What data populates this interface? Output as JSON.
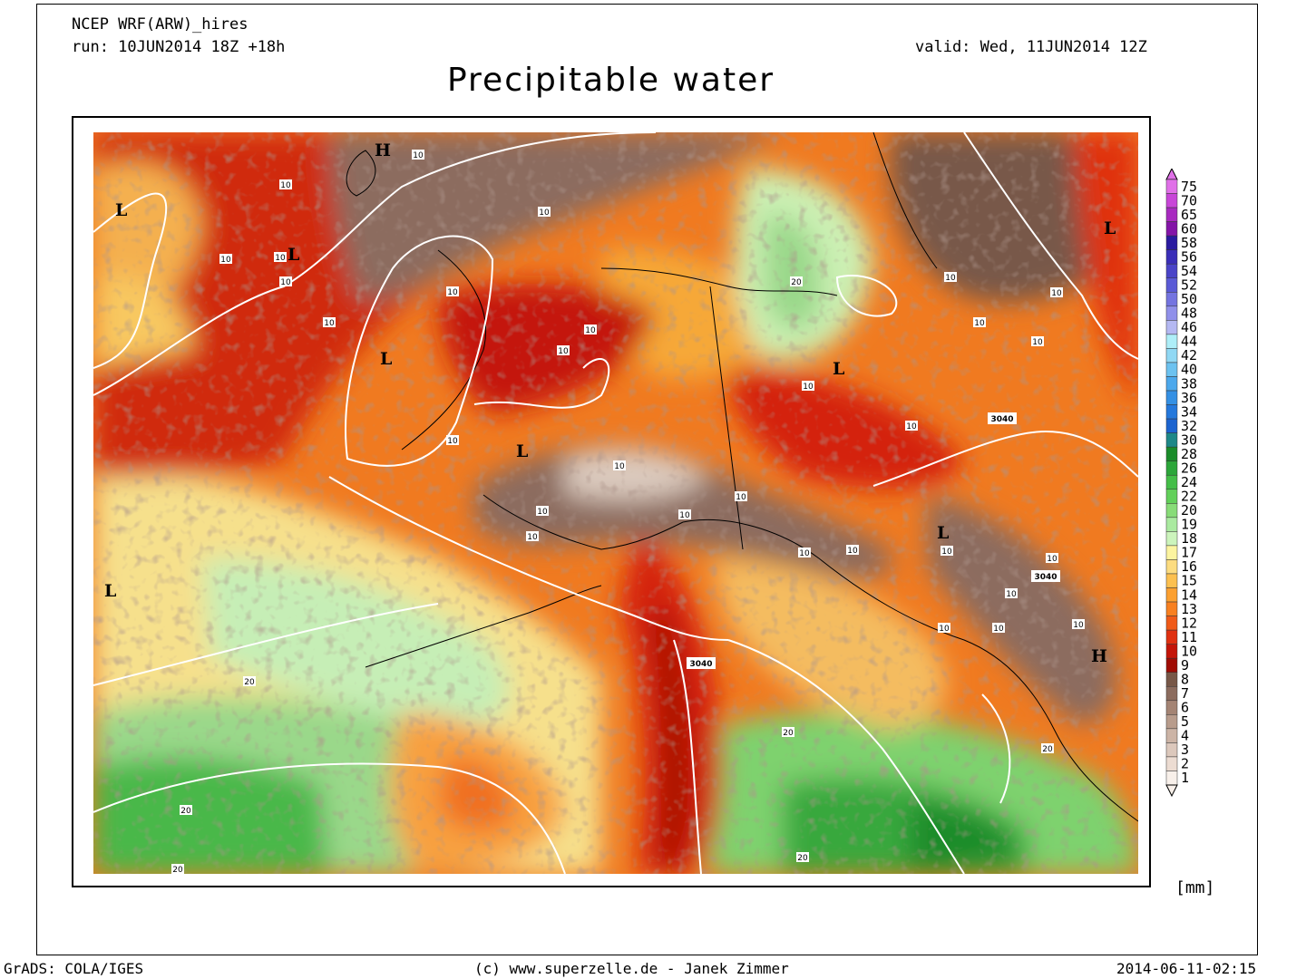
{
  "header": {
    "model": "NCEP WRF(ARW)_hires",
    "run": "run: 10JUN2014 18Z +18h",
    "valid": "valid: Wed, 11JUN2014 12Z",
    "title": "Precipitable water"
  },
  "footer": {
    "left": "GrADS: COLA/IGES",
    "center": "(c) www.superzelle.de - Janek Zimmer",
    "right": "2014-06-11-02:15"
  },
  "legend": {
    "unit": "[mm]",
    "bins": [
      {
        "label": "75",
        "color": "#e070e8"
      },
      {
        "label": "70",
        "color": "#c846d8"
      },
      {
        "label": "65",
        "color": "#a82ac0"
      },
      {
        "label": "60",
        "color": "#8414a8"
      },
      {
        "label": "58",
        "color": "#2a1aa0"
      },
      {
        "label": "56",
        "color": "#3a2eb8"
      },
      {
        "label": "54",
        "color": "#4a44c8"
      },
      {
        "label": "52",
        "color": "#5a5ad6"
      },
      {
        "label": "50",
        "color": "#7474e0"
      },
      {
        "label": "48",
        "color": "#9090ea"
      },
      {
        "label": "46",
        "color": "#b4b8f2"
      },
      {
        "label": "44",
        "color": "#aeeef8"
      },
      {
        "label": "42",
        "color": "#90d8f4"
      },
      {
        "label": "40",
        "color": "#6cc2f0"
      },
      {
        "label": "38",
        "color": "#4ca8ec"
      },
      {
        "label": "36",
        "color": "#3490e4"
      },
      {
        "label": "34",
        "color": "#2478dc"
      },
      {
        "label": "32",
        "color": "#1c64d0"
      },
      {
        "label": "30",
        "color": "#1e8888"
      },
      {
        "label": "28",
        "color": "#1a8c2a"
      },
      {
        "label": "26",
        "color": "#2ca63a"
      },
      {
        "label": "24",
        "color": "#44be48"
      },
      {
        "label": "22",
        "color": "#62d05a"
      },
      {
        "label": "20",
        "color": "#88dc78"
      },
      {
        "label": "19",
        "color": "#aaeaa0"
      },
      {
        "label": "18",
        "color": "#ccf4bc"
      },
      {
        "label": "17",
        "color": "#fcf4a0"
      },
      {
        "label": "16",
        "color": "#fcdc80"
      },
      {
        "label": "15",
        "color": "#fcc050"
      },
      {
        "label": "14",
        "color": "#fca030"
      },
      {
        "label": "13",
        "color": "#f88020"
      },
      {
        "label": "12",
        "color": "#f05a18"
      },
      {
        "label": "11",
        "color": "#e03010"
      },
      {
        "label": "10",
        "color": "#c41408"
      },
      {
        "label": "9",
        "color": "#a00c04"
      },
      {
        "label": "8",
        "color": "#785848"
      },
      {
        "label": "7",
        "color": "#8c6c5e"
      },
      {
        "label": "6",
        "color": "#a48474"
      },
      {
        "label": "5",
        "color": "#b89c8c"
      },
      {
        "label": "4",
        "color": "#ccb4a6"
      },
      {
        "label": "3",
        "color": "#dcc8bc"
      },
      {
        "label": "2",
        "color": "#ecdcd2"
      },
      {
        "label": "1",
        "color": "#f8f0ea"
      }
    ]
  },
  "map_labels": {
    "lows": [
      "L",
      "L",
      "L",
      "L",
      "L",
      "L",
      "L",
      "L"
    ],
    "highs": [
      "H",
      "H"
    ],
    "contours": [
      "10",
      "10",
      "10",
      "10",
      "10",
      "10",
      "10",
      "10",
      "10",
      "10",
      "10",
      "10",
      "10",
      "10",
      "10",
      "10",
      "10",
      "10",
      "10",
      "10",
      "10",
      "10",
      "10",
      "10",
      "10",
      "10",
      "10",
      "10",
      "10",
      "10",
      "20",
      "20",
      "20",
      "20",
      "20",
      "20",
      "20"
    ],
    "heights": [
      "3040",
      "3040",
      "3040"
    ]
  }
}
